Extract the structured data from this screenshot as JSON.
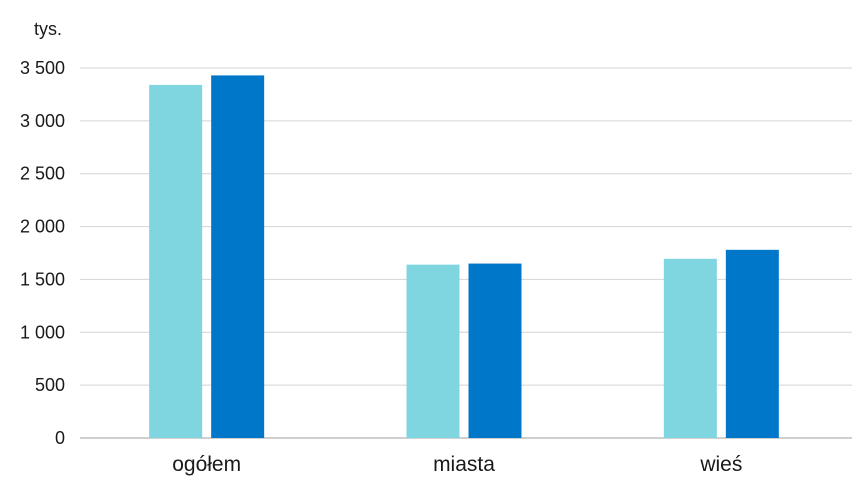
{
  "chart_data": {
    "type": "bar",
    "ylabel": "tys.",
    "ylim": [
      0,
      3500
    ],
    "yticks": [
      0,
      500,
      1000,
      1500,
      2000,
      2500,
      3000,
      3500
    ],
    "ytick_labels": [
      "0",
      "500",
      "1 000",
      "1 500",
      "2 000",
      "2 500",
      "3 000",
      "3 500"
    ],
    "categories": [
      "ogółem",
      "miasta",
      "wieś"
    ],
    "grid": true,
    "legend": "none",
    "series": [
      {
        "values": [
          3340,
          1640,
          1695
        ],
        "color": "#7fd6e0"
      },
      {
        "values": [
          3430,
          1650,
          1780
        ],
        "color": "#0077c8"
      }
    ]
  },
  "colors": {
    "gridline": "#d4d4d4",
    "axis": "#bfbfbf",
    "text": "#1a1a1a"
  }
}
